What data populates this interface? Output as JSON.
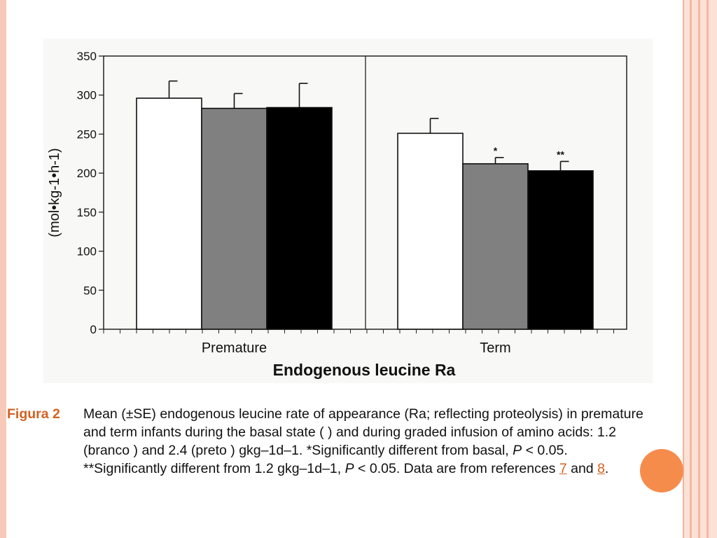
{
  "chart_data": {
    "type": "bar",
    "title": "Endogenous leucine Ra",
    "ylabel": "(mol•kg-1•h-1)",
    "ylim": [
      0,
      350
    ],
    "yticks": [
      0,
      50,
      100,
      150,
      200,
      250,
      300,
      350
    ],
    "categories": [
      "Premature",
      "Term"
    ],
    "series": [
      {
        "color": "#ffffff",
        "values": [
          296,
          251
        ],
        "errors": [
          22,
          19
        ],
        "annotations": [
          "",
          ""
        ]
      },
      {
        "color": "#808080",
        "values": [
          283,
          212
        ],
        "errors": [
          19,
          8
        ],
        "annotations": [
          "",
          "*"
        ]
      },
      {
        "color": "#000000",
        "values": [
          284,
          203
        ],
        "errors": [
          31,
          12
        ],
        "annotations": [
          "",
          "**"
        ]
      }
    ]
  },
  "caption": {
    "label": "Figura 2",
    "text_1": "Mean (±SE) endogenous leucine rate of appearance (Ra; reflecting proteolysis) in premature and term infants during the basal state ( ) and during graded infusion of amino acids: 1.2 (branco ) and 2.4 (preto ) gkg–1d–1. *Significantly different from basal, ",
    "p1": "P",
    "text_2": " < 0.05. **Significantly different from 1.2 gkg–1d–1, ",
    "p2": "P",
    "text_3": " < 0.05. Data are from references ",
    "ref1": "7",
    "text_4": " and ",
    "ref2": "8",
    "text_5": "."
  },
  "colors": {
    "accent": "#d2611f",
    "decor_circle": "#f68c4c",
    "frame": "#f7c9b8"
  }
}
